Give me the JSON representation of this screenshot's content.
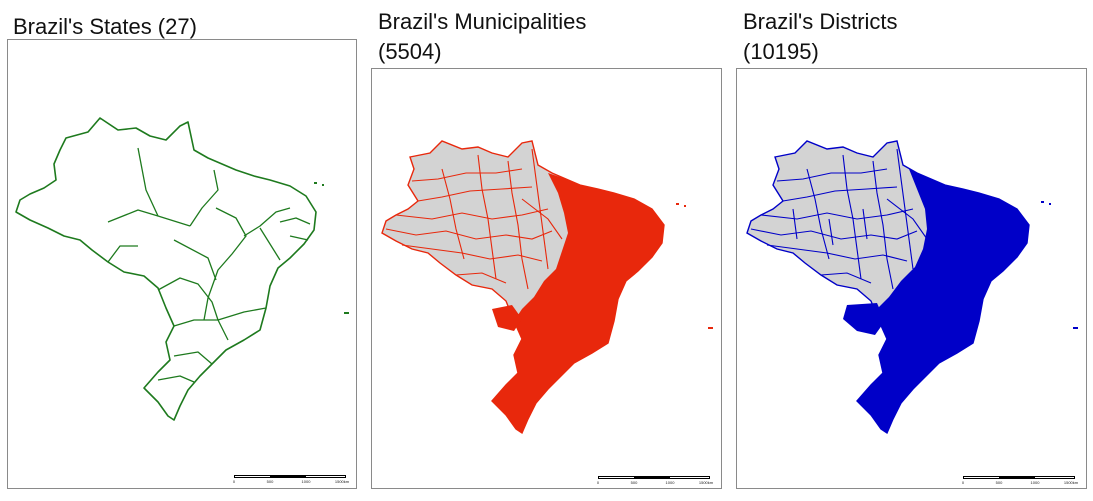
{
  "panels": [
    {
      "title_line1": "Brazil's States (27)",
      "title_line2": "",
      "outline_color": "#1e7a1e",
      "fill_color": "#ffffff"
    },
    {
      "title_line1": "Brazil's Municipalities",
      "title_line2": "(5504)",
      "outline_color": "#e8280c",
      "fill_color": "#d3d3d3"
    },
    {
      "title_line1": "Brazil's Districts",
      "title_line2": "(10195)",
      "outline_color": "#0000c8",
      "fill_color": "#d3d3d3"
    }
  ],
  "scale_bar": {
    "labels": [
      "0",
      "500",
      "1000",
      "1500km"
    ]
  }
}
